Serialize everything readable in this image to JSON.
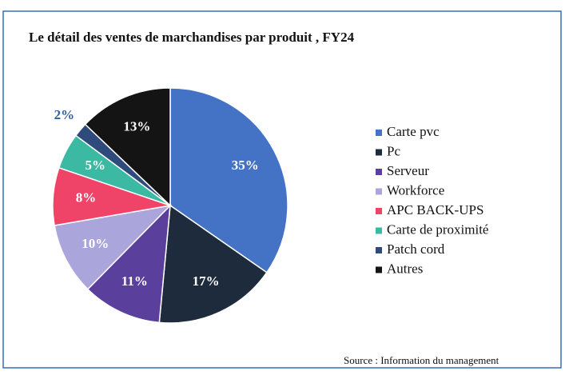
{
  "chart_data": {
    "type": "pie",
    "title": "Le détail des ventes de marchandises par produit , FY24",
    "categories": [
      "Carte pvc",
      "Pc",
      "Serveur",
      "Workforce",
      "APC BACK-UPS",
      "Carte de proximité",
      "Patch cord",
      "Autres"
    ],
    "values": [
      35,
      17,
      11,
      10,
      8,
      5,
      2,
      13
    ],
    "value_labels": [
      "35%",
      "17%",
      "11%",
      "10%",
      "8%",
      "5%",
      "2%",
      "13%"
    ],
    "colors": [
      "#4472c4",
      "#1e2b3c",
      "#5a3f9c",
      "#aaa6dc",
      "#ef4468",
      "#3cb9a2",
      "#2f4b7c",
      "#141414"
    ],
    "legend": "right",
    "source": "Source : Information du management"
  }
}
